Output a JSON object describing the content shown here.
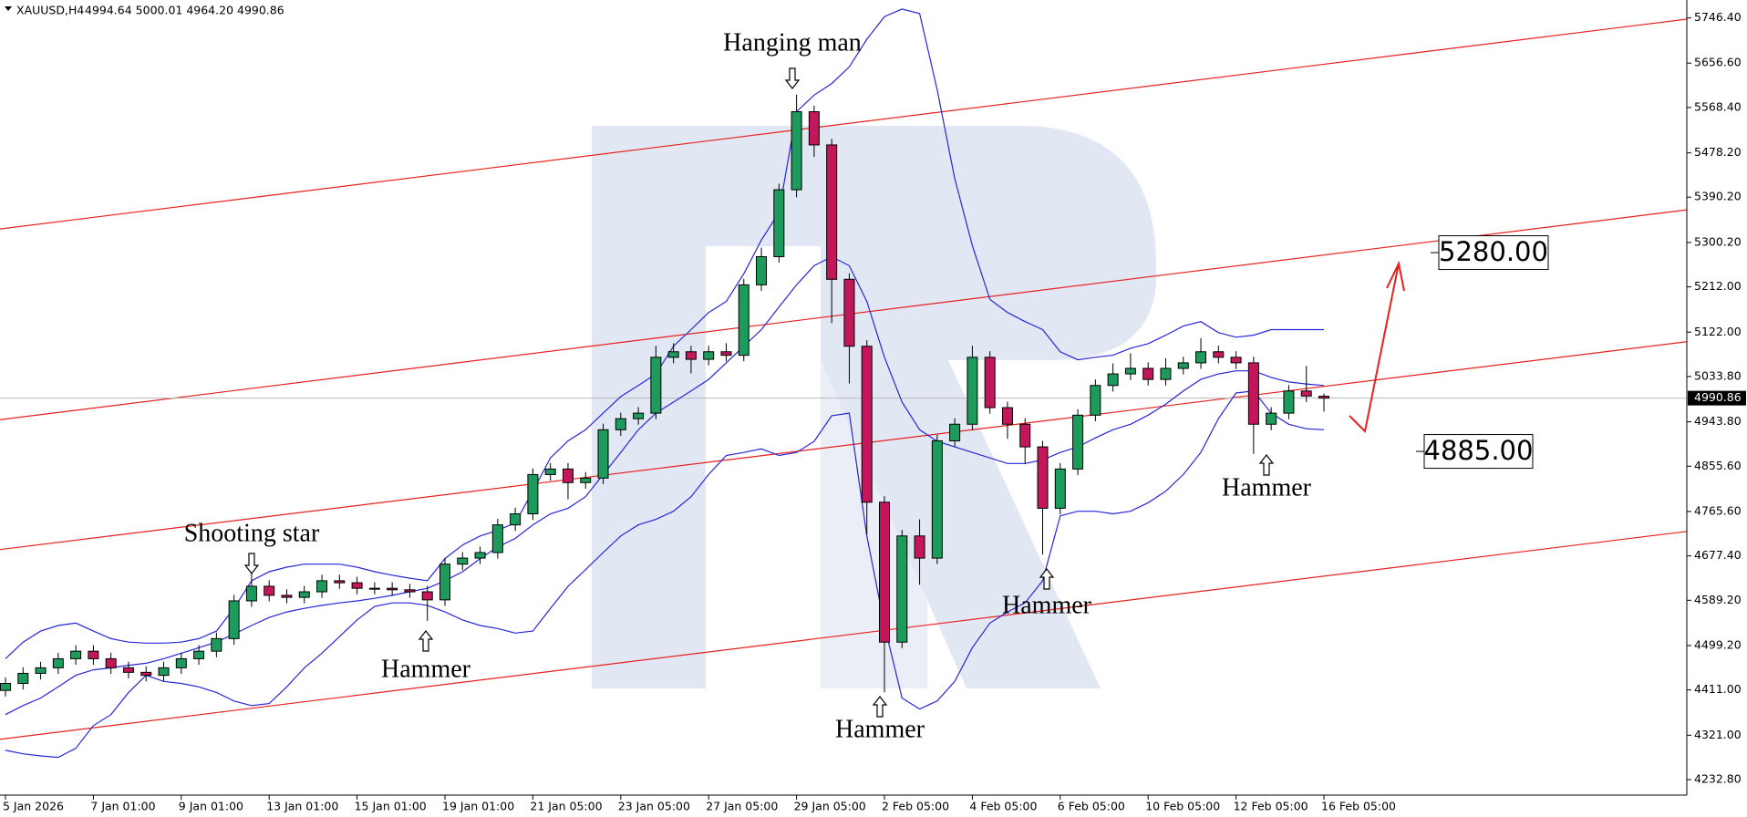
{
  "chart_data": {
    "type": "candlestick",
    "title": "XAUUSD,H4",
    "subtitle": "4994.64 5000.01 4964.20 4990.86",
    "categories": [
      "5 Jan 2026",
      null,
      null,
      null,
      null,
      "7 Jan 01:00",
      null,
      null,
      null,
      null,
      "9 Jan 01:00",
      null,
      null,
      null,
      null,
      "13 Jan 01:00",
      null,
      null,
      null,
      null,
      "15 Jan 01:00",
      null,
      null,
      null,
      null,
      "19 Jan 01:00",
      null,
      null,
      null,
      null,
      "21 Jan 05:00",
      null,
      null,
      null,
      null,
      "23 Jan 05:00",
      null,
      null,
      null,
      null,
      "27 Jan 05:00",
      null,
      null,
      null,
      null,
      "29 Jan 05:00",
      null,
      null,
      null,
      null,
      "2 Feb 05:00",
      null,
      null,
      null,
      null,
      "4 Feb 05:00",
      null,
      null,
      null,
      null,
      "6 Feb 05:00",
      null,
      null,
      null,
      null,
      "10 Feb 05:00",
      null,
      null,
      null,
      null,
      "12 Feb 05:00",
      null,
      null,
      null,
      null,
      "16 Feb 05:00"
    ],
    "open": [
      4410,
      4424,
      4444,
      4455,
      4473,
      4488,
      4473,
      4455,
      4446,
      4440,
      4455,
      4473,
      4488,
      4513,
      4588,
      4617,
      4599,
      4595,
      4606,
      4628,
      4624,
      4613,
      4613,
      4610,
      4606,
      4590,
      4661,
      4673,
      4684,
      4739,
      4761,
      4839,
      4850,
      4823,
      4832,
      4928,
      4950,
      4961,
      5072,
      5083,
      5068,
      5083,
      5076,
      5216,
      5272,
      5405,
      5560,
      5494,
      5227,
      5094,
      4784,
      4506,
      4717,
      4673,
      4906,
      4939,
      5072,
      4972,
      4939,
      4894,
      4772,
      4850,
      4957,
      5016,
      5039,
      5050,
      5028,
      5050,
      5061,
      5083,
      5072,
      5061,
      4939,
      4961,
      5005,
      4994.64
    ],
    "high": [
      4436,
      4456,
      4467,
      4485,
      4500,
      4500,
      4485,
      4467,
      4458,
      4467,
      4485,
      4500,
      4525,
      4600,
      4645,
      4629,
      4611,
      4618,
      4640,
      4640,
      4636,
      4625,
      4625,
      4622,
      4618,
      4673,
      4685,
      4696,
      4751,
      4773,
      4851,
      4862,
      4862,
      4844,
      4940,
      4962,
      4973,
      5095,
      5100,
      5095,
      5095,
      5100,
      5228,
      5290,
      5417,
      5594,
      5572,
      5506,
      5239,
      5106,
      4796,
      4729,
      4750,
      4918,
      4951,
      5095,
      5084,
      4984,
      4951,
      4906,
      4862,
      4969,
      5028,
      5060,
      5080,
      5062,
      5070,
      5073,
      5110,
      5095,
      5084,
      5073,
      4973,
      5017,
      5055,
      5000.01
    ],
    "low": [
      4398,
      4412,
      4432,
      4443,
      4461,
      4461,
      4443,
      4434,
      4428,
      4428,
      4443,
      4461,
      4476,
      4501,
      4576,
      4587,
      4583,
      4583,
      4594,
      4612,
      4601,
      4601,
      4598,
      4594,
      4548,
      4578,
      4649,
      4661,
      4672,
      4727,
      4749,
      4827,
      4790,
      4811,
      4820,
      4916,
      4938,
      4949,
      5060,
      5040,
      5056,
      5064,
      5064,
      5204,
      5260,
      5390,
      5470,
      5140,
      5020,
      4720,
      4406,
      4494,
      4620,
      4661,
      4894,
      4927,
      4960,
      4910,
      4860,
      4680,
      4760,
      4838,
      4945,
      5004,
      5027,
      5016,
      5016,
      5038,
      5049,
      5060,
      5049,
      4880,
      4927,
      4949,
      4983,
      4964.2
    ],
    "close": [
      4424,
      4444,
      4455,
      4473,
      4488,
      4473,
      4455,
      4446,
      4440,
      4455,
      4473,
      4488,
      4513,
      4588,
      4617,
      4599,
      4595,
      4606,
      4628,
      4624,
      4613,
      4613,
      4610,
      4606,
      4590,
      4661,
      4673,
      4684,
      4739,
      4761,
      4839,
      4850,
      4823,
      4832,
      4928,
      4950,
      4961,
      5072,
      5083,
      5068,
      5083,
      5076,
      5216,
      5272,
      5405,
      5560,
      5494,
      5227,
      5094,
      4784,
      4506,
      4717,
      4673,
      4906,
      4939,
      5072,
      4972,
      4939,
      4894,
      4772,
      4850,
      4957,
      5016,
      5039,
      5050,
      5028,
      5050,
      5061,
      5083,
      5072,
      5061,
      4939,
      4961,
      5005,
      4995,
      4990.86
    ],
    "up_color": "#1d9b5c",
    "down_color": "#c2185b",
    "ylim": [
      4202,
      5782
    ],
    "yticks": [
      {
        "value": 5746.4,
        "label": "5746.40"
      },
      {
        "value": 5656.6,
        "label": "5656.60"
      },
      {
        "value": 5568.4,
        "label": "5568.40"
      },
      {
        "value": 5478.2,
        "label": "5478.20"
      },
      {
        "value": 5390.2,
        "label": "5390.20"
      },
      {
        "value": 5300.2,
        "label": "5300.20"
      },
      {
        "value": 5212,
        "label": "5212.00"
      },
      {
        "value": 5122,
        "label": "5122.00"
      },
      {
        "value": 5033.8,
        "label": "5033.80"
      },
      {
        "value": 4943.8,
        "label": "4943.80"
      },
      {
        "value": 4855.6,
        "label": "4855.60"
      },
      {
        "value": 4765.6,
        "label": "4765.60"
      },
      {
        "value": 4677.4,
        "label": "4677.40"
      },
      {
        "value": 4589.2,
        "label": "4589.20"
      },
      {
        "value": 4499.2,
        "label": "4499.20"
      },
      {
        "value": 4411,
        "label": "4411.00"
      },
      {
        "value": 4321,
        "label": "4321.00"
      },
      {
        "value": 4232.8,
        "label": "4232.80"
      }
    ],
    "last_price": {
      "value": 4990.86,
      "label": "4990.86"
    },
    "overlays": [
      {
        "color": "#2626d9",
        "values": [
          4362,
          4380,
          4395,
          4417,
          4440,
          4451,
          4455,
          4460,
          4464,
          4473,
          4484,
          4495,
          4506,
          4522,
          4539,
          4555,
          4566,
          4573,
          4579,
          4584,
          4588,
          4593,
          4599,
          4606,
          4613,
          4628,
          4646,
          4672,
          4695,
          4712,
          4739,
          4761,
          4772,
          4795,
          4839,
          4883,
          4928,
          4961,
          4983,
          5005,
          5028,
          5061,
          5094,
          5127,
          5172,
          5216,
          5254,
          5272,
          5254,
          5183,
          5072,
          4983,
          4928,
          4905,
          4894,
          4883,
          4872,
          4861,
          4861,
          4868,
          4883,
          4894,
          4912,
          4928,
          4939,
          4957,
          4979,
          5005,
          5028,
          5039,
          5045,
          5045,
          5032,
          5023,
          5019,
          5016
        ]
      },
      {
        "color": "#2626d9",
        "values": [
          4473,
          4506,
          4528,
          4539,
          4544,
          4528,
          4513,
          4506,
          4504,
          4504,
          4506,
          4513,
          4528,
          4573,
          4628,
          4646,
          4655,
          4661,
          4661,
          4661,
          4655,
          4646,
          4639,
          4633,
          4628,
          4672,
          4699,
          4717,
          4728,
          4743,
          4806,
          4872,
          4906,
          4928,
          4961,
          4994,
          5016,
          5039,
          5094,
          5127,
          5161,
          5183,
          5238,
          5305,
          5360,
          5560,
          5593,
          5616,
          5649,
          5704,
          5749,
          5764,
          5755,
          5604,
          5427,
          5294,
          5187,
          5161,
          5143,
          5127,
          5083,
          5067,
          5072,
          5076,
          5090,
          5099,
          5116,
          5134,
          5143,
          5121,
          5112,
          5116,
          5127,
          5127,
          5127,
          5127
        ]
      },
      {
        "color": "#2626d9",
        "values": [
          4291,
          4284,
          4280,
          4277,
          4295,
          4340,
          4362,
          4406,
          4440,
          4428,
          4424,
          4417,
          4406,
          4389,
          4380,
          4384,
          4417,
          4455,
          4484,
          4517,
          4550,
          4577,
          4584,
          4584,
          4579,
          4566,
          4550,
          4539,
          4533,
          4524,
          4528,
          4573,
          4617,
          4650,
          4684,
          4717,
          4739,
          4750,
          4766,
          4795,
          4839,
          4877,
          4883,
          4890,
          4877,
          4883,
          4905,
          4956,
          4961,
          4717,
          4539,
          4395,
          4373,
          4389,
          4428,
          4495,
          4544,
          4566,
          4584,
          4628,
          4757,
          4766,
          4766,
          4761,
          4766,
          4783,
          4806,
          4839,
          4883,
          4950,
          5001,
          5005,
          4961,
          4939,
          4930,
          4928
        ]
      }
    ],
    "trend_lines": [
      {
        "color": "#e8201e",
        "values": [
          5327,
          5744
        ]
      },
      {
        "color": "#e8201e",
        "values": [
          4948,
          5365
        ]
      },
      {
        "color": "#e8201e",
        "values": [
          4690,
          5103
        ]
      },
      {
        "color": "#e8201e",
        "values": [
          4313,
          4726
        ]
      }
    ],
    "annotations": [
      "Hanging man",
      "Shooting star",
      "Hammer",
      "Hammer",
      "Hammer",
      "Hammer"
    ],
    "targets": [
      {
        "value": 5280,
        "label": "5280.00"
      },
      {
        "value": 4885,
        "label": "4885.00"
      }
    ]
  }
}
